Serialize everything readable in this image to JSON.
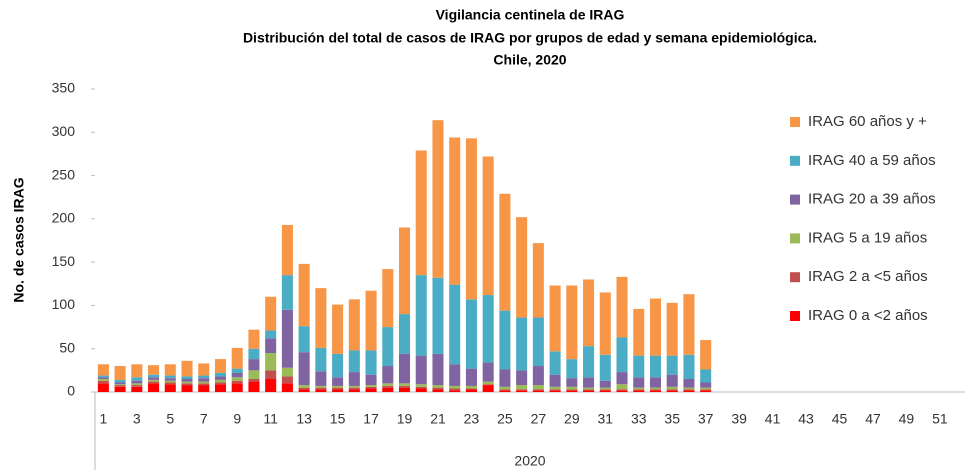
{
  "chart_data": {
    "type": "stacked-bar",
    "title": [
      "Vigilancia centinela de IRAG",
      "Distribución del total de casos de IRAG por  grupos de edad y semana epidemiológica.",
      "Chile, 2020"
    ],
    "y_label": "No. de casos IRAG",
    "x_label": "2020",
    "categories": [
      "1",
      null,
      "3",
      null,
      "5",
      null,
      "7",
      null,
      "9",
      null,
      "11",
      null,
      "13",
      null,
      "15",
      null,
      "17",
      null,
      "19",
      null,
      "21",
      null,
      "23",
      null,
      "25",
      null,
      "27",
      null,
      "29",
      null,
      "31",
      null,
      "33",
      null,
      "35",
      null,
      "37",
      null,
      "39",
      null,
      "41",
      null,
      "43",
      null,
      "45",
      null,
      "47",
      null,
      "49",
      null,
      "51",
      null
    ],
    "ylim": [
      0,
      350
    ],
    "yticks": [
      0,
      50,
      100,
      150,
      200,
      250,
      300,
      350
    ],
    "series": [
      {
        "name": "IRAG 0 a <2 años",
        "color": "#ff0000",
        "values": [
          10,
          6,
          6,
          10,
          9,
          8,
          8,
          9,
          10,
          12,
          15,
          10,
          3,
          3,
          3,
          3,
          4,
          5,
          5,
          4,
          3,
          2,
          3,
          8,
          2,
          2,
          2,
          2,
          2,
          2,
          2,
          2,
          2,
          2,
          2,
          2,
          2,
          null,
          null,
          null,
          null,
          null,
          null,
          null,
          null,
          null,
          null,
          null,
          null,
          null,
          null,
          null
        ]
      },
      {
        "name": "IRAG 2 a <5 años",
        "color": "#c0504d",
        "values": [
          3,
          2,
          2,
          2,
          2,
          2,
          2,
          2,
          3,
          3,
          10,
          8,
          2,
          2,
          2,
          2,
          2,
          2,
          2,
          2,
          2,
          2,
          1,
          1,
          1,
          1,
          1,
          1,
          1,
          1,
          1,
          1,
          1,
          1,
          1,
          1,
          1,
          null,
          null,
          null,
          null,
          null,
          null,
          null,
          null,
          null,
          null,
          null,
          null,
          null,
          null,
          null
        ]
      },
      {
        "name": "IRAG 5 a 19 años",
        "color": "#9bbb59",
        "values": [
          2,
          1,
          2,
          2,
          2,
          2,
          2,
          3,
          4,
          10,
          20,
          10,
          3,
          2,
          2,
          2,
          2,
          3,
          3,
          3,
          3,
          3,
          3,
          3,
          3,
          5,
          5,
          3,
          3,
          2,
          2,
          6,
          2,
          2,
          3,
          2,
          2,
          null,
          null,
          null,
          null,
          null,
          null,
          null,
          null,
          null,
          null,
          null,
          null,
          null,
          null,
          null
        ]
      },
      {
        "name": "IRAG 20 a 39 años",
        "color": "#8064a2",
        "values": [
          2,
          2,
          3,
          3,
          3,
          3,
          4,
          4,
          5,
          13,
          17,
          67,
          38,
          17,
          10,
          16,
          12,
          20,
          34,
          33,
          36,
          25,
          20,
          22,
          20,
          17,
          22,
          14,
          10,
          12,
          8,
          14,
          12,
          12,
          14,
          10,
          6,
          null,
          null,
          null,
          null,
          null,
          null,
          null,
          null,
          null,
          null,
          null,
          null,
          null,
          null,
          null
        ]
      },
      {
        "name": "IRAG 40 a 59 años",
        "color": "#4bacc6",
        "values": [
          2,
          3,
          4,
          3,
          3,
          3,
          3,
          4,
          5,
          12,
          9,
          40,
          30,
          27,
          27,
          25,
          28,
          45,
          46,
          93,
          88,
          92,
          80,
          78,
          68,
          61,
          56,
          27,
          22,
          36,
          30,
          40,
          25,
          25,
          22,
          28,
          15,
          null,
          null,
          null,
          null,
          null,
          null,
          null,
          null,
          null,
          null,
          null,
          null,
          null,
          null,
          null
        ]
      },
      {
        "name": "IRAG 60 años y +",
        "color": "#f79646",
        "values": [
          13,
          16,
          15,
          11,
          13,
          18,
          14,
          16,
          24,
          22,
          39,
          58,
          72,
          69,
          57,
          59,
          69,
          67,
          100,
          144,
          182,
          170,
          186,
          160,
          135,
          116,
          86,
          76,
          85,
          77,
          72,
          70,
          54,
          66,
          61,
          70,
          34,
          null,
          null,
          null,
          null,
          null,
          null,
          null,
          null,
          null,
          null,
          null,
          null,
          null,
          null,
          null
        ]
      }
    ],
    "grid": false,
    "legend": "right"
  }
}
